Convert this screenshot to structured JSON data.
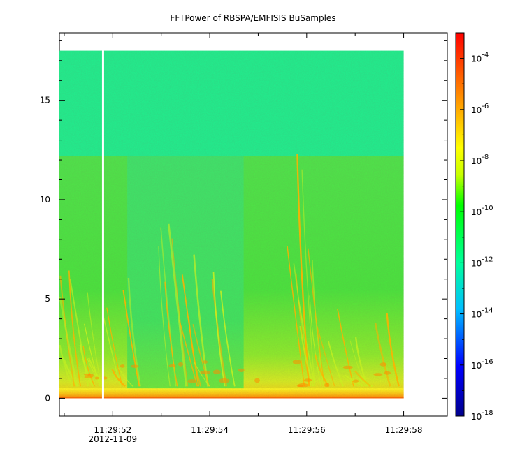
{
  "chart_data": {
    "type": "heatmap",
    "title": "FFTPower of RBSPA/EMFISIS  BuSamples",
    "xlabel": "",
    "ylabel": "",
    "x_ticks": [
      "11:29:52",
      "11:29:54",
      "11:29:56",
      "11:29:58"
    ],
    "x_date": "2012-11-09",
    "x_range_seconds": [
      50.9,
      58.9
    ],
    "data_x_range_seconds": [
      50.9,
      58.0
    ],
    "gap_at_seconds": 51.8,
    "y_ticks": [
      0,
      5,
      10,
      15
    ],
    "ylim": [
      -0.9,
      18.4
    ],
    "data_y_max": 17.5,
    "colorbar": {
      "scale": "log",
      "range": [
        1e-18,
        0.001
      ],
      "tick_exponents": [
        -4,
        -6,
        -8,
        -10,
        -12,
        -14,
        -16,
        -18
      ],
      "colormap": [
        "#00008b",
        "#0000ff",
        "#00bfff",
        "#00ff9c",
        "#00ff00",
        "#c8ff00",
        "#ffff00",
        "#ff9900",
        "#ff0000"
      ]
    },
    "regions": [
      {
        "y_from": 12.2,
        "y_to": 17.5,
        "level_exp": -12.5
      },
      {
        "y_from": 0,
        "y_to": 12.2,
        "level_exp": -10.5,
        "quiet_interval_seconds": [
          52.3,
          54.7
        ],
        "quiet_level_exp": -11.5
      },
      {
        "y_from": 0,
        "y_to": 0.5,
        "level_exp": -6
      }
    ]
  }
}
